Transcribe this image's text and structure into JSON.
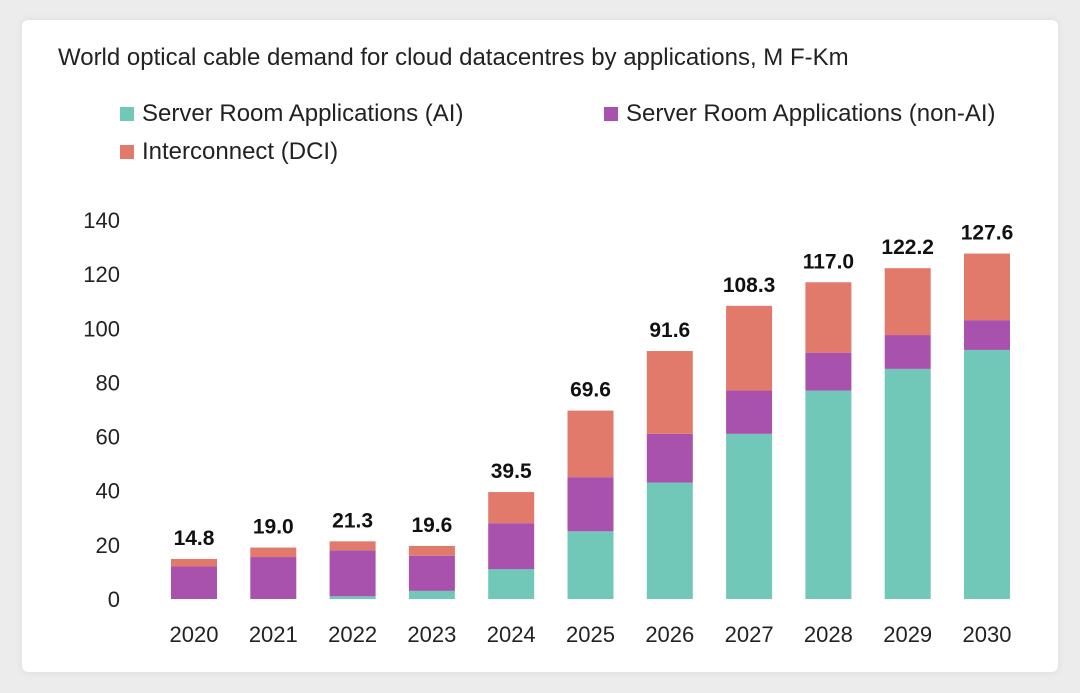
{
  "chart_data": {
    "type": "bar",
    "stacked": true,
    "title": "World optical cable demand for cloud datacentres by applications, M F-Km",
    "categories": [
      "2020",
      "2021",
      "2022",
      "2023",
      "2024",
      "2025",
      "2026",
      "2027",
      "2028",
      "2029",
      "2030"
    ],
    "series": [
      {
        "name": "Server Room Applications (AI)",
        "color": "#71c8b8",
        "values": [
          0,
          0,
          1,
          3,
          11,
          25,
          43,
          61,
          77,
          85,
          92
        ]
      },
      {
        "name": "Server Room Applications (non-AI)",
        "color": "#a952ad",
        "values": [
          12,
          15.5,
          17,
          13,
          17,
          20,
          18,
          16,
          14,
          12.5,
          11
        ]
      },
      {
        "name": "Interconnect (DCI)",
        "color": "#e27a6c",
        "values": [
          2.8,
          3.5,
          3.3,
          3.6,
          11.5,
          24.6,
          30.6,
          31.3,
          26,
          24.7,
          24.6
        ]
      }
    ],
    "totals": [
      "14.8",
      "19.0",
      "21.3",
      "19.6",
      "39.5",
      "69.6",
      "91.6",
      "108.3",
      "117.0",
      "122.2",
      "127.6"
    ],
    "ylim": [
      0,
      140
    ],
    "yticks": [
      0,
      20,
      40,
      60,
      80,
      100,
      120,
      140
    ],
    "xlabel": "",
    "ylabel": "",
    "grid": false,
    "legend": "top-left"
  }
}
